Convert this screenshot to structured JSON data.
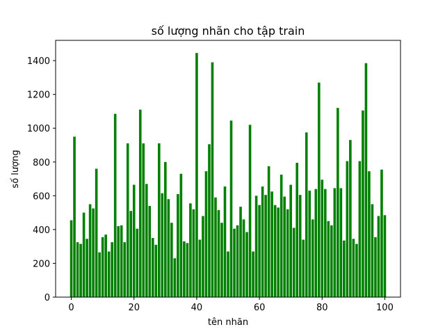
{
  "chart_data": {
    "type": "bar",
    "title": "số lượng nhãn cho tập train",
    "xlabel": "tên nhãn",
    "ylabel": "số lượng",
    "x": [
      0,
      1,
      2,
      3,
      4,
      5,
      6,
      7,
      8,
      9,
      10,
      11,
      12,
      13,
      14,
      15,
      16,
      17,
      18,
      19,
      20,
      21,
      22,
      23,
      24,
      25,
      26,
      27,
      28,
      29,
      30,
      31,
      32,
      33,
      34,
      35,
      36,
      37,
      38,
      39,
      40,
      41,
      42,
      43,
      44,
      45,
      46,
      47,
      48,
      49,
      50,
      51,
      52,
      53,
      54,
      55,
      56,
      57,
      58,
      59,
      60,
      61,
      62,
      63,
      64,
      65,
      66,
      67,
      68,
      69,
      70,
      71,
      72,
      73,
      74,
      75,
      76,
      77,
      78,
      79,
      80,
      81,
      82,
      83,
      84,
      85,
      86,
      87,
      88,
      89,
      90,
      91,
      92,
      93,
      94,
      95,
      96,
      97,
      98,
      99,
      100
    ],
    "values": [
      455,
      950,
      325,
      315,
      500,
      345,
      550,
      525,
      760,
      265,
      355,
      370,
      270,
      325,
      1085,
      420,
      425,
      325,
      910,
      510,
      665,
      405,
      1110,
      910,
      670,
      540,
      350,
      310,
      910,
      615,
      800,
      580,
      440,
      230,
      610,
      730,
      330,
      320,
      555,
      520,
      1445,
      340,
      480,
      745,
      905,
      1390,
      590,
      515,
      440,
      655,
      270,
      1045,
      405,
      425,
      535,
      460,
      385,
      1020,
      270,
      600,
      545,
      655,
      605,
      775,
      625,
      545,
      530,
      725,
      595,
      520,
      665,
      410,
      795,
      605,
      340,
      975,
      630,
      460,
      640,
      1270,
      695,
      640,
      450,
      425,
      645,
      1120,
      645,
      335,
      805,
      930,
      345,
      315,
      805,
      1105,
      1385,
      745,
      550,
      355,
      480,
      755,
      485
    ],
    "xticks": [
      0,
      20,
      40,
      60,
      80,
      100
    ],
    "yticks": [
      0,
      200,
      400,
      600,
      800,
      1000,
      1200,
      1400
    ],
    "xlim": [
      -5,
      105
    ],
    "ylim": [
      0,
      1520
    ],
    "bar_color": "#008000",
    "grid": false,
    "legend": "none"
  }
}
